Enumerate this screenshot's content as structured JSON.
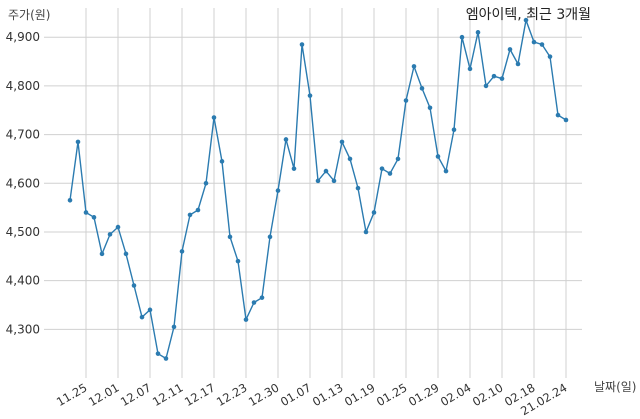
{
  "chart_data": {
    "type": "line",
    "title": "엠아이텍, 최근 3개월",
    "ylabel": "주가(원)",
    "xlabel": "날짜(일)",
    "ylim": [
      4200,
      4960
    ],
    "grid": true,
    "y_ticks": [
      4300,
      4400,
      4500,
      4600,
      4700,
      4800,
      4900
    ],
    "y_tick_labels": [
      "4,300",
      "4,400",
      "4,500",
      "4,600",
      "4,700",
      "4,800",
      "4,900"
    ],
    "x_tick_labels": [
      "11.25",
      "12.01",
      "12.07",
      "12.11",
      "12.17",
      "12.23",
      "12.30",
      "01.07",
      "01.13",
      "01.19",
      "01.25",
      "01.29",
      "02.04",
      "02.10",
      "02.18",
      "21.02.24"
    ],
    "x_tick_indices": [
      2,
      6,
      10,
      14,
      18,
      22,
      26,
      30,
      34,
      38,
      42,
      46,
      50,
      54,
      58,
      62
    ],
    "series": [
      {
        "color": "#2b7bb0",
        "values": [
          4565,
          4685,
          4540,
          4530,
          4455,
          4495,
          4510,
          4455,
          4390,
          4325,
          4340,
          4250,
          4240,
          4305,
          4460,
          4535,
          4545,
          4600,
          4735,
          4645,
          4490,
          4440,
          4320,
          4355,
          4365,
          4490,
          4585,
          4690,
          4630,
          4885,
          4780,
          4605,
          4625,
          4605,
          4685,
          4650,
          4590,
          4500,
          4540,
          4630,
          4620,
          4650,
          4770,
          4840,
          4795,
          4755,
          4655,
          4625,
          4710,
          4900,
          4835,
          4910,
          4800,
          4820,
          4815,
          4875,
          4845,
          4935,
          4890,
          4885,
          4860,
          4740,
          4730
        ]
      }
    ]
  }
}
